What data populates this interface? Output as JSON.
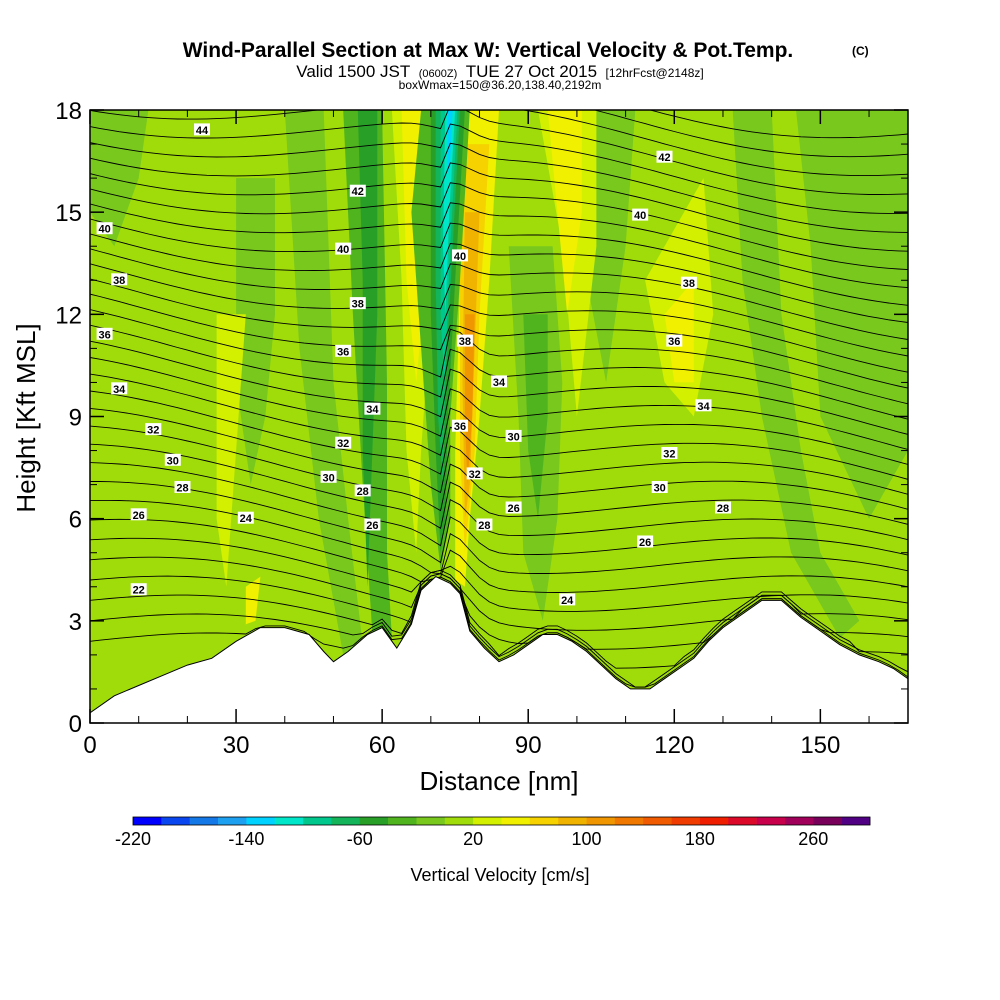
{
  "title": "Wind-Parallel Section at Max W: Vertical Velocity & Pot.Temp.",
  "title_mark": "(C)",
  "subtitle_main": "Valid 1500 JST",
  "subtitle_utc": "(0600Z)",
  "subtitle_date": "TUE 27 Oct 2015",
  "subtitle_fcst": "[12hrFcst@2148z]",
  "subtitle_box": "boxWmax=150@36.20,138.40,2192m",
  "chart_data": {
    "type": "heatmap",
    "xlabel": "Distance [nm]",
    "ylabel": "Height [Kft MSL]",
    "xlim": [
      0,
      168
    ],
    "ylim": [
      0,
      18
    ],
    "xticks": [
      "0",
      "30",
      "60",
      "90",
      "120",
      "150"
    ],
    "yticks": [
      "0",
      "3",
      "6",
      "9",
      "12",
      "15",
      "18"
    ],
    "colorbar": {
      "label": "Vertical Velocity [cm/s]",
      "tick_labels": [
        "-220",
        "-140",
        "-60",
        "20",
        "100",
        "180",
        "260"
      ],
      "levels": [
        -220,
        -200,
        -180,
        -160,
        -140,
        -120,
        -100,
        -80,
        -60,
        -40,
        -20,
        0,
        20,
        40,
        60,
        80,
        100,
        120,
        140,
        160,
        180,
        200,
        220,
        240,
        260,
        280
      ],
      "colors": [
        "#0000ff",
        "#0a46f0",
        "#1478e6",
        "#1ea0f0",
        "#00d2ff",
        "#00e6c8",
        "#00c88c",
        "#14b45a",
        "#28a028",
        "#50b41e",
        "#78c81e",
        "#a0dc0a",
        "#d2f000",
        "#f0f000",
        "#f5d200",
        "#f0b400",
        "#f09600",
        "#f07800",
        "#f05a00",
        "#f03c00",
        "#f01e00",
        "#dc0a28",
        "#c8004b",
        "#a0005a",
        "#78005a",
        "#500082"
      ]
    },
    "terrain_kft": [
      [
        0,
        0.3
      ],
      [
        5,
        0.8
      ],
      [
        10,
        1.1
      ],
      [
        15,
        1.4
      ],
      [
        20,
        1.7
      ],
      [
        25,
        1.9
      ],
      [
        30,
        2.4
      ],
      [
        35,
        2.8
      ],
      [
        40,
        2.8
      ],
      [
        45,
        2.6
      ],
      [
        48,
        2.1
      ],
      [
        50,
        1.8
      ],
      [
        53,
        2.1
      ],
      [
        57,
        2.6
      ],
      [
        60,
        2.8
      ],
      [
        63,
        2.2
      ],
      [
        66,
        2.9
      ],
      [
        68,
        3.9
      ],
      [
        71,
        4.3
      ],
      [
        74,
        4.1
      ],
      [
        76,
        3.8
      ],
      [
        78,
        2.7
      ],
      [
        81,
        2.2
      ],
      [
        84,
        1.8
      ],
      [
        87,
        2.0
      ],
      [
        90,
        2.3
      ],
      [
        93,
        2.6
      ],
      [
        96,
        2.6
      ],
      [
        99,
        2.4
      ],
      [
        102,
        2.1
      ],
      [
        105,
        1.7
      ],
      [
        108,
        1.3
      ],
      [
        111,
        1.0
      ],
      [
        115,
        1.0
      ],
      [
        118,
        1.3
      ],
      [
        121,
        1.6
      ],
      [
        124,
        1.9
      ],
      [
        127,
        2.4
      ],
      [
        130,
        2.8
      ],
      [
        134,
        3.2
      ],
      [
        138,
        3.6
      ],
      [
        142,
        3.6
      ],
      [
        146,
        3.1
      ],
      [
        150,
        2.7
      ],
      [
        154,
        2.3
      ],
      [
        158,
        2.0
      ],
      [
        162,
        1.8
      ],
      [
        165,
        1.6
      ],
      [
        168,
        1.3
      ]
    ],
    "theta_contour_levels": [
      22,
      24,
      26,
      28,
      30,
      32,
      34,
      36,
      38,
      40,
      42,
      44
    ],
    "theta_label_positions": [
      {
        "x": 23,
        "y": 17.4,
        "t": "44"
      },
      {
        "x": 55,
        "y": 15.6,
        "t": "42"
      },
      {
        "x": 118,
        "y": 16.6,
        "t": "42"
      },
      {
        "x": 3,
        "y": 14.5,
        "t": "40"
      },
      {
        "x": 52,
        "y": 13.9,
        "t": "40"
      },
      {
        "x": 113,
        "y": 14.9,
        "t": "40"
      },
      {
        "x": 76,
        "y": 13.7,
        "t": "40"
      },
      {
        "x": 6,
        "y": 13.0,
        "t": "38"
      },
      {
        "x": 55,
        "y": 12.3,
        "t": "38"
      },
      {
        "x": 123,
        "y": 12.9,
        "t": "38"
      },
      {
        "x": 77,
        "y": 11.2,
        "t": "38"
      },
      {
        "x": 3,
        "y": 11.4,
        "t": "36"
      },
      {
        "x": 52,
        "y": 10.9,
        "t": "36"
      },
      {
        "x": 120,
        "y": 11.2,
        "t": "36"
      },
      {
        "x": 76,
        "y": 8.7,
        "t": "36"
      },
      {
        "x": 6,
        "y": 9.8,
        "t": "34"
      },
      {
        "x": 58,
        "y": 9.2,
        "t": "34"
      },
      {
        "x": 84,
        "y": 10.0,
        "t": "34"
      },
      {
        "x": 126,
        "y": 9.3,
        "t": "34"
      },
      {
        "x": 13,
        "y": 8.6,
        "t": "32"
      },
      {
        "x": 52,
        "y": 8.2,
        "t": "32"
      },
      {
        "x": 119,
        "y": 7.9,
        "t": "32"
      },
      {
        "x": 79,
        "y": 7.3,
        "t": "32"
      },
      {
        "x": 17,
        "y": 7.7,
        "t": "30"
      },
      {
        "x": 49,
        "y": 7.2,
        "t": "30"
      },
      {
        "x": 87,
        "y": 8.4,
        "t": "30"
      },
      {
        "x": 117,
        "y": 6.9,
        "t": "30"
      },
      {
        "x": 19,
        "y": 6.9,
        "t": "28"
      },
      {
        "x": 56,
        "y": 6.8,
        "t": "28"
      },
      {
        "x": 130,
        "y": 6.3,
        "t": "28"
      },
      {
        "x": 81,
        "y": 5.8,
        "t": "28"
      },
      {
        "x": 10,
        "y": 6.1,
        "t": "26"
      },
      {
        "x": 58,
        "y": 5.8,
        "t": "26"
      },
      {
        "x": 87,
        "y": 6.3,
        "t": "26"
      },
      {
        "x": 114,
        "y": 5.3,
        "t": "26"
      },
      {
        "x": 32,
        "y": 6.0,
        "t": "24"
      },
      {
        "x": 98,
        "y": 3.6,
        "t": "24"
      },
      {
        "x": 10,
        "y": 3.9,
        "t": "22"
      }
    ]
  }
}
